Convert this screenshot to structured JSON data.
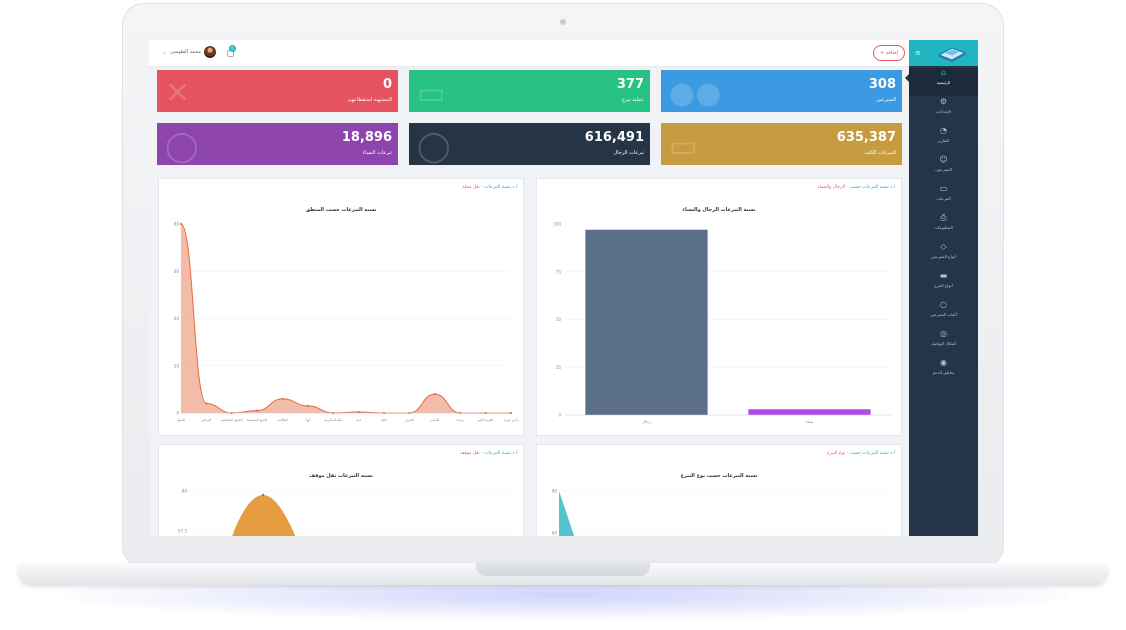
{
  "topbar": {
    "user_name": "محمد الطوسي",
    "notification_count": "0",
    "add_button": "+ إضافة"
  },
  "sidebar": {
    "items": [
      {
        "label": "الرئيسية",
        "icon": "home-icon",
        "glyph": "⌂"
      },
      {
        "label": "الإعدادات",
        "icon": "gear-icon",
        "glyph": "⚙"
      },
      {
        "label": "التقارير",
        "icon": "pie-chart-icon",
        "glyph": "◔"
      },
      {
        "label": "المتبرعون",
        "icon": "user-icon",
        "glyph": "☺"
      },
      {
        "label": "التبرعات",
        "icon": "folder-icon",
        "glyph": "▭"
      },
      {
        "label": "المطبوعات",
        "icon": "printer-icon",
        "glyph": "⎙"
      },
      {
        "label": "أنواع المتبرعين",
        "icon": "diamond-icon",
        "glyph": "◇"
      },
      {
        "label": "أنواع التبرع",
        "icon": "card-icon",
        "glyph": "▬"
      },
      {
        "label": "ألقاب المتبرعين",
        "icon": "bulb-icon",
        "glyph": "○"
      },
      {
        "label": "أشكال التواصل",
        "icon": "headset-icon",
        "glyph": "◎"
      },
      {
        "label": "مناطق الدعم",
        "icon": "pin-icon",
        "glyph": "◉"
      }
    ]
  },
  "stats": [
    {
      "value": "308",
      "label": "المتبرعين",
      "color": "#3b9ae1",
      "icon": "users-icon",
      "glyph": "●●"
    },
    {
      "value": "377",
      "label": "عملية تبرع",
      "color": "#27c284",
      "icon": "card-icon",
      "glyph": "▭"
    },
    {
      "value": "0",
      "label": "المشتهية استقطاعهم",
      "color": "#e4535f",
      "icon": "mute-icon",
      "glyph": "✕"
    },
    {
      "value": "635,387",
      "label": "التبرعات الكلية",
      "color": "#c79b3f",
      "icon": "wallet-icon",
      "glyph": "▭"
    },
    {
      "value": "616,491",
      "label": "تبرعات الرجال",
      "color": "#263545",
      "icon": "man-icon",
      "glyph": "◯"
    },
    {
      "value": "18,896",
      "label": "تبرعات النساء",
      "color": "#8e44ad",
      "icon": "woman-icon",
      "glyph": "◯"
    }
  ],
  "panels": [
    {
      "title_a": "أ.د نسبة التبرعات حسب",
      "title_b": "الرجال والنساء"
    },
    {
      "title_a": "أ.د نسبة التبرعات",
      "title_b": "نقل محلة"
    },
    {
      "title_a": "أ.د نسبة التبرعات حسب",
      "title_b": "نوع التبرع"
    },
    {
      "title_a": "أ.د نسبة التبرعات",
      "title_b": "نقل موقف"
    }
  ],
  "chart_data": [
    {
      "type": "bar",
      "title": "نسبة التبرعات الرجال والنساء",
      "categories": [
        "رجال",
        "نساء"
      ],
      "values": [
        97,
        3
      ],
      "ylim": [
        0,
        100
      ],
      "yticks": [
        0,
        25,
        50,
        75,
        100
      ],
      "colors": [
        "#5a6e8a",
        "#b44be0"
      ],
      "grid": true
    },
    {
      "type": "area",
      "title": "نسبة التبرعات حسب المنطق",
      "categories": [
        "المنيل",
        "الرياض",
        "الجبيل الصناعية",
        "البديع الصناعية",
        "الطائف",
        "أبها",
        "مكة المكرمة",
        "جدة",
        "حائل",
        "الخرج",
        "الدمام",
        "بريدة",
        "القرية الجو",
        "رأس تنورة"
      ],
      "values": [
        80,
        4,
        0,
        1,
        6,
        3,
        0,
        0.4,
        0,
        0,
        8,
        0,
        0,
        0
      ],
      "ylim": [
        0,
        80
      ],
      "yticks": [
        0,
        20,
        40,
        60,
        80
      ],
      "color": "#e46a3d",
      "grid": true
    },
    {
      "type": "area",
      "title": "نسبة التبرعات حسب نوع التبرع",
      "ylim_top": 80,
      "yticks": [
        80,
        60
      ],
      "color": "#3bb8c4"
    },
    {
      "type": "area",
      "title": "نسبة التبرعات نقل موقف",
      "ylim_top": 80,
      "yticks": [
        80,
        67.5
      ],
      "color": "#e3912b"
    }
  ]
}
